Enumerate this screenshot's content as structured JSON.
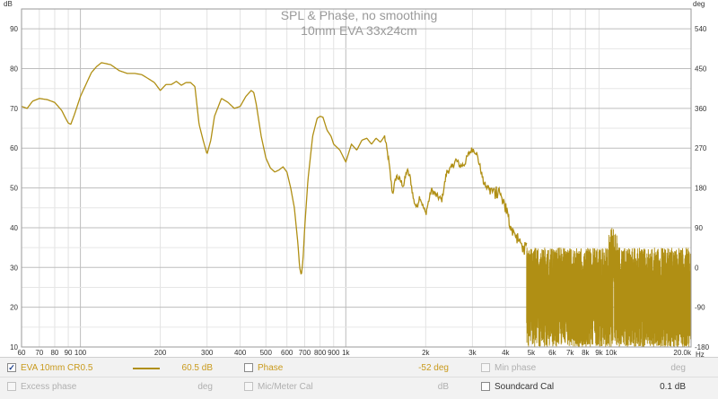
{
  "chart_data": {
    "type": "line",
    "title": "SPL & Phase, no smoothing",
    "subtitle": "10mm EVA 33x24cm",
    "xscale": "log",
    "xlim": [
      60,
      20000
    ],
    "ylim": [
      10,
      95
    ],
    "y2lim": [
      -180,
      585
    ],
    "ylabel": "dB",
    "y2label": "deg",
    "xunit": "Hz",
    "grid": true,
    "yticks": [
      10,
      20,
      30,
      40,
      50,
      60,
      70,
      80,
      90
    ],
    "yticklabels": [
      "10",
      "20",
      "30",
      "40",
      "50",
      "60",
      "70",
      "80",
      "90"
    ],
    "y2ticks": [
      -180,
      -90,
      0,
      90,
      180,
      270,
      360,
      450,
      540
    ],
    "y2ticklabels": [
      "-180",
      "-90",
      "0",
      "90",
      "180",
      "270",
      "360",
      "450",
      "540"
    ],
    "xticks": [
      60,
      70,
      80,
      90,
      100,
      200,
      300,
      400,
      500,
      600,
      700,
      800,
      900,
      1000,
      2000,
      3000,
      4000,
      5000,
      6000,
      7000,
      8000,
      9000,
      10000,
      20000
    ],
    "xticklabels": [
      "60",
      "70",
      "80",
      "90",
      "100",
      "200",
      "300",
      "400",
      "500",
      "600",
      "700",
      "800",
      "900",
      "1k",
      "2k",
      "3k",
      "4k",
      "5k",
      "6k",
      "7k",
      "8k",
      "9k",
      "10k",
      "20.0k"
    ],
    "series": [
      {
        "name": "EVA 10mm CR0.5",
        "color": "#b08f14",
        "x": [
          60,
          63,
          66,
          70,
          75,
          80,
          85,
          88,
          90,
          92,
          95,
          100,
          110,
          115,
          120,
          130,
          140,
          150,
          160,
          170,
          180,
          190,
          200,
          210,
          220,
          230,
          240,
          250,
          260,
          270,
          280,
          290,
          300,
          310,
          320,
          340,
          360,
          380,
          400,
          420,
          440,
          450,
          460,
          480,
          500,
          520,
          540,
          560,
          580,
          600,
          620,
          640,
          660,
          670,
          680,
          690,
          700,
          720,
          750,
          780,
          800,
          820,
          850,
          880,
          900,
          950,
          1000,
          1050,
          1100,
          1150,
          1200,
          1250,
          1300,
          1350,
          1400,
          1450,
          1500,
          1550,
          1600,
          1650,
          1700,
          1750,
          1800,
          1850,
          1900,
          1950,
          2000,
          2100,
          2200,
          2300,
          2400,
          2500,
          2600,
          2700,
          2800,
          2900,
          3000,
          3100,
          3200,
          3300,
          3400,
          3500,
          3600,
          3700,
          3800,
          4000,
          4200,
          4400,
          4600,
          4800
        ],
        "values": [
          70.5,
          70.0,
          71.8,
          72.5,
          72.2,
          71.5,
          69.5,
          67.5,
          66.3,
          66.0,
          68.5,
          73.0,
          79.0,
          80.5,
          81.5,
          81.0,
          79.5,
          78.8,
          78.8,
          78.5,
          77.5,
          76.5,
          74.5,
          76.0,
          76.0,
          76.8,
          75.8,
          76.5,
          76.5,
          75.5,
          66.0,
          62.0,
          58.5,
          62.0,
          68.0,
          72.5,
          71.5,
          70.0,
          70.5,
          73.0,
          74.5,
          74.0,
          71.0,
          63.0,
          57.5,
          55.0,
          54.0,
          54.5,
          55.3,
          54.0,
          50.0,
          45.0,
          36.0,
          30.0,
          28.0,
          32.0,
          40.0,
          52.0,
          63.0,
          67.5,
          68.0,
          67.8,
          64.5,
          63.0,
          61.0,
          59.5,
          56.5,
          61.0,
          59.5,
          62.0,
          62.5,
          61.0,
          62.5,
          61.5,
          63.0,
          57.0,
          48.5,
          53.0,
          52.0,
          50.5,
          54.5,
          52.5,
          47.0,
          45.0,
          48.0,
          45.5,
          43.5,
          49.5,
          48.0,
          47.0,
          54.0,
          55.0,
          57.0,
          55.5,
          56.0,
          58.5,
          59.8,
          59.0,
          55.5,
          51.5,
          50.0,
          50.0,
          49.0,
          48.5,
          48.5,
          45.0,
          40.0,
          37.5,
          35.5,
          34.5
        ],
        "noise_band_khz": [
          5,
          20
        ]
      }
    ]
  },
  "legend": {
    "row1": {
      "measurement_label": "EVA 10mm CR0.5",
      "measurement_value": "60.5 dB",
      "phase_label": "Phase",
      "phase_value": "-52 deg",
      "min_phase_label": "Min phase",
      "min_phase_unit": "deg"
    },
    "row2": {
      "excess_phase_label": "Excess phase",
      "excess_phase_unit": "deg",
      "mic_cal_label": "Mic/Meter Cal",
      "mic_cal_unit": "dB",
      "soundcard_cal_label": "Soundcard Cal",
      "soundcard_cal_value": "0.1 dB"
    },
    "checkmark": "✓"
  }
}
